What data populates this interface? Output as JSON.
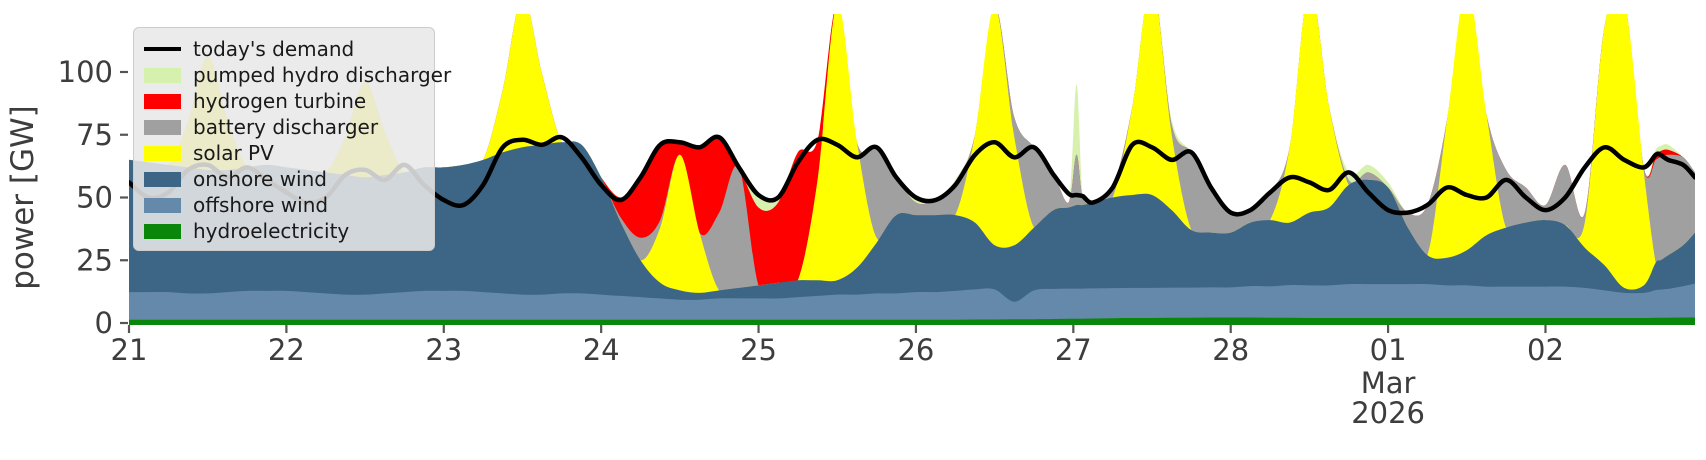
{
  "y_axis": {
    "label": "power [GW]",
    "ticks": [
      0,
      25,
      50,
      75,
      100
    ],
    "tick_labels": [
      "0",
      "25",
      "50",
      "75",
      "100"
    ]
  },
  "x_axis": {
    "ticks": [
      {
        "day": 0,
        "label": "21"
      },
      {
        "day": 1,
        "label": "22"
      },
      {
        "day": 2,
        "label": "23"
      },
      {
        "day": 3,
        "label": "24"
      },
      {
        "day": 4,
        "label": "25"
      },
      {
        "day": 5,
        "label": "26"
      },
      {
        "day": 6,
        "label": "27"
      },
      {
        "day": 7,
        "label": "28"
      },
      {
        "day": 8,
        "label": "01"
      },
      {
        "day": 9,
        "label": "02"
      }
    ],
    "month_label": {
      "day": 8,
      "lines": [
        "Mar",
        "2026"
      ]
    }
  },
  "legend": {
    "items": [
      {
        "label": "today's demand",
        "color": "#000000",
        "handle": "line"
      },
      {
        "label": "pumped hydro discharger",
        "color": "#d6f0ae",
        "handle": "patch"
      },
      {
        "label": "hydrogen turbine",
        "color": "#ff0000",
        "handle": "patch"
      },
      {
        "label": "battery discharger",
        "color": "#a0a0a0",
        "handle": "patch"
      },
      {
        "label": "solar PV",
        "color": "#ffff00",
        "handle": "patch"
      },
      {
        "label": "onshore wind",
        "color": "#3d6585",
        "handle": "patch"
      },
      {
        "label": "offshore wind",
        "color": "#6589aa",
        "handle": "patch"
      },
      {
        "label": "hydroelectricity",
        "color": "#0a870a",
        "handle": "patch"
      }
    ]
  },
  "chart_data": {
    "type": "area",
    "title": "",
    "xlabel": "",
    "ylabel": "power [GW]",
    "ylim": [
      0,
      123
    ],
    "grid": false,
    "legend_position": "upper-left",
    "x_unit": "days since Feb 21 2026, 00:00",
    "x": [
      0,
      0.125,
      0.25,
      0.375,
      0.5,
      0.625,
      0.75,
      0.875,
      1,
      1.125,
      1.25,
      1.375,
      1.5,
      1.625,
      1.75,
      1.875,
      2,
      2.125,
      2.25,
      2.375,
      2.5,
      2.625,
      2.75,
      2.875,
      3,
      3.125,
      3.25,
      3.375,
      3.5,
      3.625,
      3.75,
      3.875,
      4,
      4.125,
      4.25,
      4.375,
      4.5,
      4.625,
      4.75,
      4.875,
      5,
      5.125,
      5.25,
      5.375,
      5.5,
      5.625,
      5.75,
      5.875,
      5.97,
      6.02,
      6.06,
      6.125,
      6.25,
      6.375,
      6.5,
      6.625,
      6.75,
      6.875,
      7,
      7.125,
      7.25,
      7.375,
      7.5,
      7.625,
      7.75,
      7.875,
      8,
      8.125,
      8.25,
      8.375,
      8.5,
      8.625,
      8.75,
      8.875,
      9,
      9.125,
      9.25,
      9.375,
      9.5,
      9.625,
      9.7,
      9.73,
      9.78,
      9.875,
      9.95
    ],
    "series": [
      {
        "name": "hydroelectricity",
        "color": "#0a870a",
        "values": [
          1.3,
          1.3,
          1.3,
          1.3,
          1.3,
          1.3,
          1.3,
          1.3,
          1.3,
          1.3,
          1.3,
          1.3,
          1.3,
          1.3,
          1.3,
          1.3,
          1.3,
          1.3,
          1.3,
          1.3,
          1.3,
          1.3,
          1.3,
          1.3,
          1.3,
          1.3,
          1.3,
          1.3,
          1.3,
          1.3,
          1.3,
          1.3,
          1.3,
          1.3,
          1.3,
          1.3,
          1.3,
          1.3,
          1.3,
          1.3,
          1.3,
          1.3,
          1.3,
          1.4,
          1.4,
          1.5,
          1.5,
          1.6,
          1.7,
          1.7,
          1.7,
          1.8,
          1.9,
          2,
          2,
          2.1,
          2.1,
          2.2,
          2.2,
          2.2,
          2.1,
          2.1,
          2,
          2,
          2,
          2,
          2,
          2,
          2,
          2,
          2,
          2,
          2,
          2,
          2,
          2,
          2,
          2,
          2,
          2,
          2.1,
          2.1,
          2.1,
          2.2,
          2.2
        ]
      },
      {
        "name": "offshore wind",
        "color": "#6589aa",
        "values": [
          11,
          11,
          11,
          10.5,
          10.5,
          11,
          11.5,
          11.5,
          11.5,
          11,
          10.5,
          10,
          10,
          10.5,
          11,
          11.5,
          11.5,
          11.5,
          11,
          10.5,
          10,
          10,
          10.5,
          10.5,
          10,
          9.5,
          9,
          8.5,
          8,
          8,
          8.5,
          8.5,
          8.5,
          8.5,
          9,
          9.5,
          10,
          10,
          10.5,
          10.5,
          11,
          11,
          11.5,
          12,
          12,
          7,
          11.5,
          12,
          12,
          12,
          12,
          12,
          12,
          12,
          12,
          12,
          12,
          12,
          12,
          12.5,
          12.5,
          13,
          13,
          13,
          13.5,
          13.5,
          13.5,
          13.5,
          13.5,
          13,
          13,
          12.5,
          12.5,
          12.5,
          12.5,
          12.5,
          12,
          11,
          10,
          10,
          11,
          11.2,
          11.5,
          12.5,
          13.5
        ]
      },
      {
        "name": "onshore wind",
        "color": "#3d6585",
        "values": [
          52.7,
          51.7,
          50.7,
          50.2,
          49.2,
          48.7,
          49.2,
          50.2,
          49.2,
          48.7,
          48.2,
          47.7,
          46.7,
          47.2,
          47.7,
          49.2,
          49.2,
          50.2,
          52.7,
          56.2,
          58.7,
          59.7,
          60.2,
          59.2,
          46.7,
          29.2,
          14.7,
          6.2,
          3.7,
          2.7,
          3.2,
          4.2,
          5.2,
          6.2,
          6.7,
          6.2,
          5.7,
          10.7,
          20.2,
          31.2,
          30.7,
          30.7,
          30.2,
          26.6,
          17.6,
          22.5,
          25,
          31.4,
          32.3,
          33.3,
          33.3,
          34.2,
          36.1,
          37,
          37,
          30.9,
          22.9,
          21.8,
          21.8,
          25.3,
          26.4,
          24.9,
          29,
          31,
          39.5,
          41.5,
          38.5,
          22.5,
          11.5,
          11,
          14,
          20.5,
          23.5,
          25.5,
          26.5,
          24.5,
          16,
          10,
          2,
          3,
          10.9,
          11.7,
          13.4,
          16.3,
          20.3
        ]
      },
      {
        "name": "solar PV",
        "color": "#ffff00",
        "values": [
          0,
          0,
          0,
          18,
          45,
          20,
          0,
          0,
          0,
          0,
          0,
          15,
          38,
          17,
          0,
          0,
          0,
          0,
          0,
          25,
          60,
          28,
          0,
          0,
          0,
          0,
          0,
          22,
          54,
          24,
          0,
          0,
          0,
          0,
          0,
          40,
          110,
          50,
          2,
          0,
          0,
          0,
          0,
          35,
          95,
          43,
          0,
          0,
          0,
          0,
          0,
          0,
          0,
          35,
          85,
          30,
          0,
          0,
          0,
          0,
          0,
          30,
          90,
          40,
          0,
          0,
          0,
          0,
          0,
          55,
          105,
          48,
          0,
          0,
          0,
          0,
          10,
          95,
          115,
          45,
          0,
          0,
          0,
          0,
          0
        ]
      },
      {
        "name": "battery discharger",
        "color": "#a0a0a0",
        "values": [
          0,
          0,
          0,
          0,
          0,
          0,
          0,
          0,
          0,
          0,
          0,
          0,
          0,
          0,
          0,
          0,
          0,
          0,
          0,
          0,
          0,
          0,
          0,
          0,
          0,
          2,
          9,
          3,
          0,
          0,
          31,
          48,
          0,
          0,
          0,
          0,
          0,
          0,
          36,
          15,
          5,
          6,
          12,
          0,
          0,
          8,
          32,
          14,
          2,
          20,
          3,
          0,
          4,
          0,
          0,
          4,
          31,
          18,
          8,
          5,
          11,
          0,
          0,
          0,
          2,
          3,
          0,
          6,
          20,
          0,
          0,
          0,
          23,
          14,
          6,
          24,
          4,
          0,
          0,
          2,
          41,
          41,
          40,
          35,
          24
        ]
      },
      {
        "name": "hydrogen turbine",
        "color": "#ff0000",
        "values": [
          0,
          0,
          0,
          0,
          0,
          0,
          0,
          0,
          0,
          0,
          0,
          0,
          0,
          0,
          0,
          0,
          0,
          0,
          0,
          0,
          0,
          0,
          0,
          0,
          0,
          8,
          24,
          30,
          5,
          34,
          30,
          0,
          31,
          32,
          51,
          16,
          0,
          0,
          0,
          0,
          0,
          0,
          0,
          0,
          0,
          0,
          0,
          0,
          0,
          0,
          0,
          0,
          0,
          0,
          0,
          0,
          0,
          0,
          0,
          0,
          0,
          0,
          0,
          0,
          0,
          0,
          0,
          0,
          0,
          0,
          0,
          0,
          0,
          0,
          0,
          0,
          0,
          0,
          0,
          0,
          2,
          2.5,
          2,
          0,
          0
        ]
      },
      {
        "name": "pumped hydro discharger",
        "color": "#d6f0ae",
        "values": [
          0,
          0,
          0,
          0,
          0,
          0,
          0,
          0,
          0,
          0,
          0,
          0,
          0,
          0,
          0,
          0,
          0,
          0,
          0,
          0,
          0,
          0,
          0,
          0,
          0,
          0,
          0,
          0,
          0,
          0,
          0,
          0,
          5,
          2,
          0,
          0,
          0,
          0,
          0,
          0,
          3,
          0,
          2,
          0,
          0,
          0,
          0,
          0,
          0,
          28,
          0,
          0,
          0,
          0,
          0,
          2,
          0,
          0,
          0,
          0,
          0,
          0,
          0,
          0,
          3,
          3,
          2,
          0,
          0,
          0,
          0,
          0,
          0,
          0,
          0,
          0,
          0,
          0,
          0,
          0,
          2,
          2,
          2,
          0,
          0
        ]
      }
    ],
    "demand_line": {
      "name": "today's demand",
      "color": "#000000",
      "values": [
        56,
        50,
        52,
        61,
        63,
        58,
        62,
        57,
        52,
        48,
        50,
        59,
        61,
        57,
        63,
        55,
        49,
        47,
        55,
        70,
        73,
        71,
        74,
        66,
        55,
        49,
        58,
        71,
        72,
        70,
        74,
        62,
        51,
        50,
        64,
        73,
        71,
        66,
        70,
        58,
        50,
        49,
        55,
        67,
        72,
        66,
        70,
        59,
        51.5,
        51,
        50.5,
        48,
        54,
        71,
        70,
        65,
        68,
        54,
        44,
        45,
        52,
        58,
        56,
        53,
        60,
        52,
        45,
        44,
        47,
        54,
        51,
        50,
        57,
        50,
        45,
        50,
        62,
        70,
        65,
        62,
        67,
        67,
        65,
        63,
        58
      ]
    }
  }
}
